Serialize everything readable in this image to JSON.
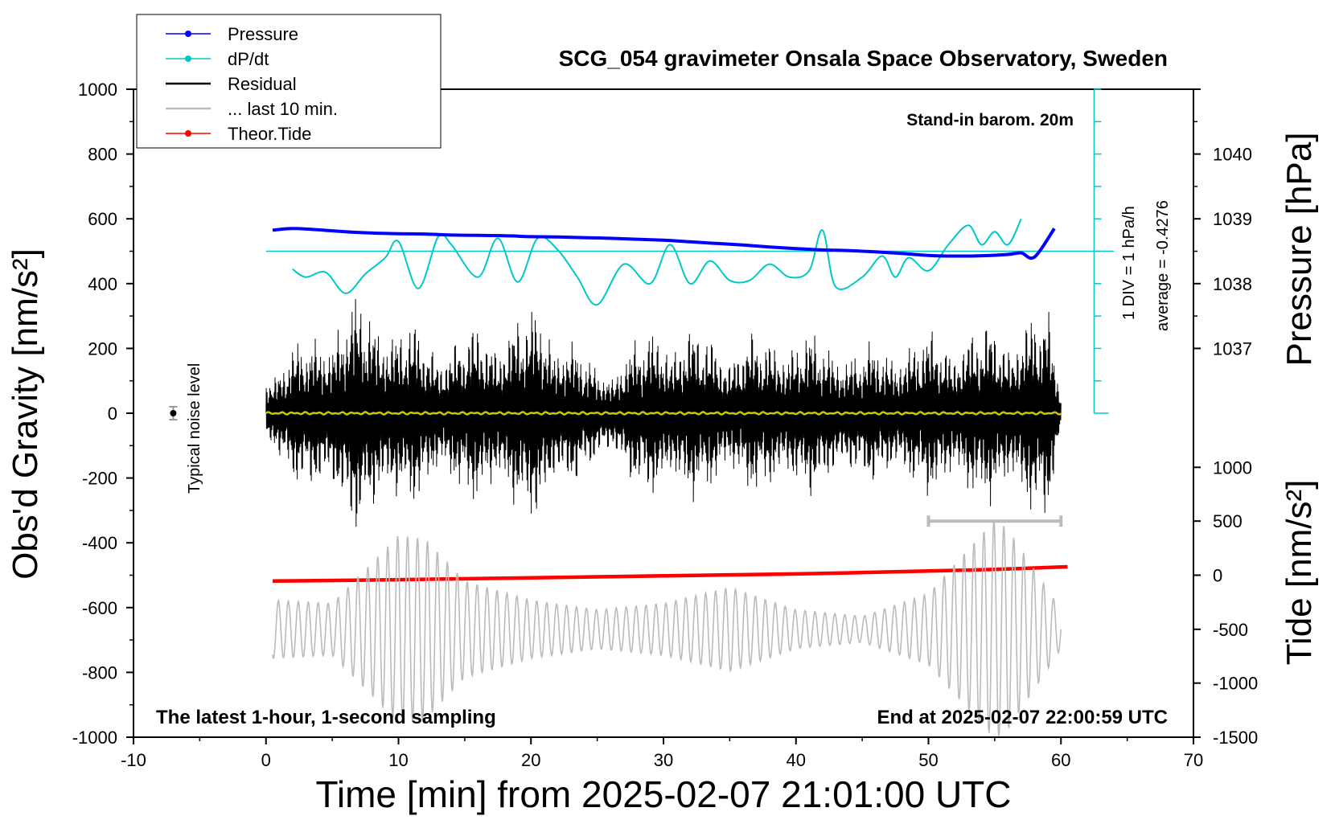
{
  "chart_data": {
    "type": "line",
    "title": "SCG_054 gravimeter Onsala Space Observatory, Sweden",
    "xlabel": "Time [min] from 2025-02-07 21:01:00 UTC",
    "ylabel_left": "Obs'd Gravity [nm/s²]",
    "ylabel_pressure": "Pressure [hPa]",
    "ylabel_tide": "Tide [nm/s²]",
    "xlim": [
      -10,
      70
    ],
    "ylim": [
      -1000,
      1000
    ],
    "x_ticks": [
      "-10",
      "0",
      "10",
      "20",
      "30",
      "40",
      "50",
      "60",
      "70"
    ],
    "y_ticks": [
      "1000",
      "800",
      "600",
      "400",
      "200",
      "0",
      "-200",
      "-400",
      "-600",
      "-800",
      "-1000"
    ],
    "pressure_ticks": [
      {
        "label": "1040",
        "gravity_equiv": 800
      },
      {
        "label": "1039",
        "gravity_equiv": 600
      },
      {
        "label": "1038",
        "gravity_equiv": 400
      },
      {
        "label": "1037",
        "gravity_equiv": 200
      }
    ],
    "tide_ticks": [
      {
        "label": "1000",
        "gravity_equiv": -167
      },
      {
        "label": "500",
        "gravity_equiv": -333
      },
      {
        "label": "0",
        "gravity_equiv": -500
      },
      {
        "label": "-500",
        "gravity_equiv": -667
      },
      {
        "label": "-1000",
        "gravity_equiv": -833
      },
      {
        "label": "-1500",
        "gravity_equiv": -1000
      }
    ],
    "legend": [
      {
        "label": "Pressure",
        "color": "#0000ff",
        "marker": true
      },
      {
        "label": "dP/dt",
        "color": "#00c8c8",
        "marker": true
      },
      {
        "label": "Residual",
        "color": "#000000",
        "marker": false
      },
      {
        "label": "... last 10 min.",
        "color": "#bbbbbb",
        "marker": false
      },
      {
        "label": "Theor.Tide",
        "color": "#ff0000",
        "marker": true
      }
    ],
    "annotations": {
      "barometer": "Stand-in barom. 20m",
      "dpdt_scale": "1 DIV = 1 hPa/h",
      "dpdt_average": "average = -0.4276",
      "noise": "Typical noise level",
      "bottom_left": "The latest 1-hour, 1-second sampling",
      "bottom_right": "End at 2025-02-07 22:00:59 UTC"
    },
    "series": [
      {
        "name": "Pressure",
        "color": "#0000ff",
        "x": [
          0.5,
          2,
          4,
          6,
          8,
          10,
          12,
          14,
          16,
          18,
          20,
          22,
          24,
          26,
          28,
          30,
          32,
          34,
          36,
          38,
          40,
          42,
          44,
          46,
          48,
          50,
          52,
          54,
          56,
          57,
          58,
          59.5
        ],
        "y": [
          565,
          570,
          566,
          560,
          556,
          554,
          553,
          550,
          549,
          548,
          545,
          544,
          542,
          540,
          537,
          534,
          529,
          524,
          519,
          513,
          508,
          504,
          502,
          498,
          493,
          487,
          485,
          486,
          490,
          495,
          482,
          570
        ]
      },
      {
        "name": "dP/dt",
        "color": "#00c8c8",
        "x": [
          2,
          3,
          4.5,
          6,
          7.5,
          9,
          10,
          11.5,
          13,
          14,
          16,
          17.5,
          19,
          20.5,
          22,
          23.5,
          25,
          27,
          29,
          30.5,
          32,
          33.5,
          35,
          36.5,
          38,
          39.5,
          41,
          42,
          43,
          45,
          46.5,
          47.5,
          48.5,
          50,
          51.5,
          53,
          54,
          55,
          56,
          57
        ],
        "y": [
          445,
          420,
          435,
          370,
          430,
          480,
          530,
          385,
          545,
          520,
          420,
          540,
          405,
          540,
          505,
          420,
          335,
          460,
          400,
          520,
          400,
          470,
          410,
          410,
          460,
          420,
          440,
          565,
          390,
          420,
          485,
          420,
          480,
          440,
          520,
          580,
          520,
          560,
          520,
          600
        ]
      },
      {
        "name": "Theor.Tide",
        "color": "#ff0000",
        "x": [
          0.5,
          10,
          20,
          30,
          40,
          50,
          55,
          60.5
        ],
        "y": [
          -518,
          -514,
          -508,
          -502,
          -496,
          -487,
          -482,
          -474
        ]
      }
    ],
    "residual_envelope": {
      "x": [
        0,
        7,
        13,
        21,
        25,
        30,
        35,
        40,
        45,
        50,
        55,
        59,
        60
      ],
      "amplitude": [
        150,
        390,
        250,
        360,
        150,
        310,
        250,
        280,
        220,
        270,
        300,
        355,
        90
      ]
    },
    "last10_envelope": {
      "x": [
        0.5,
        5,
        10,
        12,
        15,
        20,
        25,
        30,
        35,
        40,
        45,
        50,
        55,
        56,
        60
      ],
      "amplitude": [
        90,
        80,
        290,
        280,
        150,
        90,
        60,
        80,
        130,
        60,
        40,
        110,
        340,
        310,
        60
      ]
    },
    "noise_level": {
      "x": -7,
      "value": 0,
      "error": 20
    }
  }
}
